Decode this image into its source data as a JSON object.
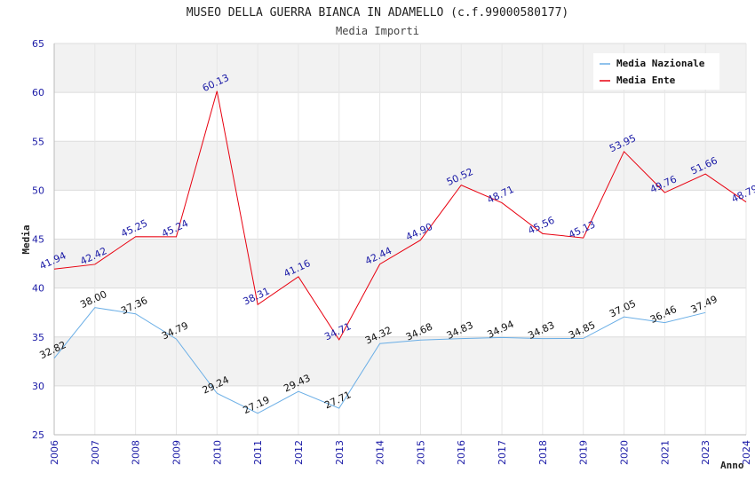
{
  "chart_data": {
    "type": "line",
    "title": "MUSEO DELLA GUERRA BIANCA IN ADAMELLO (c.f.99000580177)",
    "subtitle": "Media Importi",
    "xlabel": "Anno",
    "ylabel": "Media",
    "ylim": [
      25,
      65
    ],
    "yticks": [
      25,
      30,
      35,
      40,
      45,
      50,
      55,
      60,
      65
    ],
    "categories": [
      "2006",
      "2007",
      "2008",
      "2009",
      "2010",
      "2011",
      "2012",
      "2013",
      "2014",
      "2015",
      "2016",
      "2017",
      "2018",
      "2019",
      "2020",
      "2021",
      "2023",
      "2024"
    ],
    "grid": true,
    "legend_position": "top-right",
    "series": [
      {
        "name": "Media Nazionale",
        "color": "#6aaee6",
        "label_color": "#111111",
        "values": [
          32.82,
          38.0,
          37.36,
          34.79,
          29.24,
          27.19,
          29.43,
          27.71,
          34.32,
          34.68,
          34.83,
          34.94,
          34.83,
          34.85,
          37.05,
          36.46,
          37.49,
          null
        ],
        "labels": [
          "32.82",
          "38.00",
          "37.36",
          "34.79",
          "29.24",
          "27.19",
          "29.43",
          "27.71",
          "34.32",
          "34.68",
          "34.83",
          "34.94",
          "34.83",
          "34.85",
          "37.05",
          "36.46",
          "37.49",
          ""
        ]
      },
      {
        "name": "Media Ente",
        "color": "#e8000f",
        "label_color": "#1a1aa6",
        "values": [
          41.94,
          42.42,
          45.25,
          45.24,
          60.13,
          38.31,
          41.16,
          34.71,
          42.44,
          44.9,
          50.52,
          48.71,
          45.56,
          45.13,
          53.95,
          49.76,
          51.66,
          48.79
        ],
        "labels": [
          "41.94",
          "42.42",
          "45.25",
          "45.24",
          "60.13",
          "38.31",
          "41.16",
          "34.71",
          "42.44",
          "44.90",
          "50.52",
          "48.71",
          "45.56",
          "45.13",
          "53.95",
          "49.76",
          "51.66",
          "48.79"
        ]
      }
    ]
  }
}
